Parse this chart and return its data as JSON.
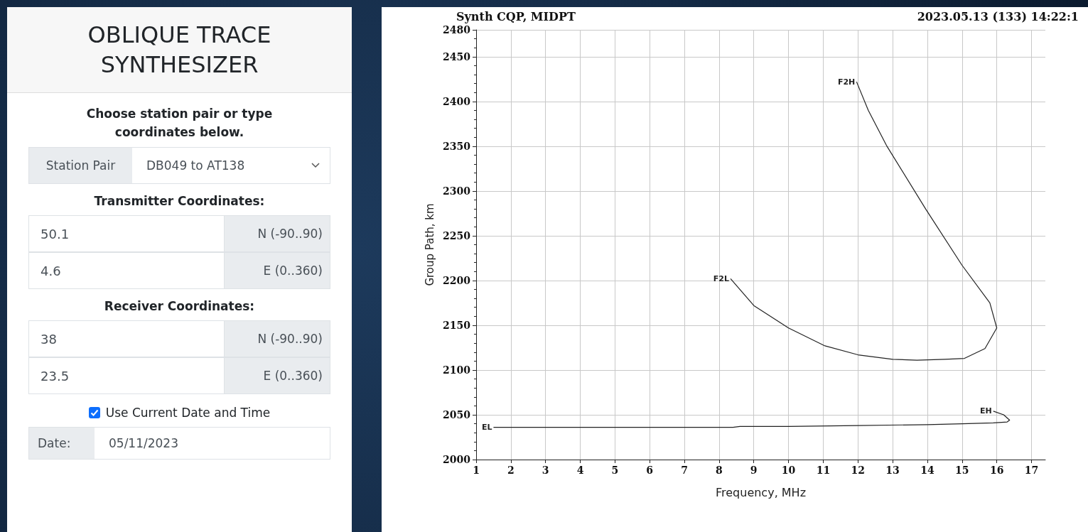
{
  "chart_data": [
    {
      "type": "other",
      "title": "OBLIQUE TRACE SYNTHESIZER",
      "annotations": [
        "Choose station pair or type coordinates below.",
        "Station Pair",
        "DB049 to AT138",
        "Transmitter Coordinates:",
        "50.1",
        "N (-90..90)",
        "4.6",
        "E (0..360)",
        "Receiver Coordinates:",
        "38",
        "N (-90..90)",
        "23.5",
        "E (0..360)",
        "Use Current Date and Time",
        "Date:",
        "05/11/2023"
      ]
    },
    {
      "type": "line",
      "title": "Synth CQP, MIDPT",
      "subtitle": "2023.05.13 (133) 14:22:1",
      "xlabel": "Frequency, MHz",
      "ylabel": "Group Path, km",
      "xlim": [
        1,
        17.4
      ],
      "xticks": [
        1,
        2,
        3,
        4,
        5,
        6,
        7,
        8,
        9,
        10,
        11,
        12,
        13,
        14,
        15,
        16,
        17
      ],
      "ylim": [
        2000,
        2480
      ],
      "yticks": [
        2000,
        2050,
        2100,
        2150,
        2200,
        2250,
        2300,
        2350,
        2400,
        2450,
        2480
      ],
      "grid": true,
      "marker": "none",
      "line_style": "solid",
      "series": [
        {
          "color": "#222222",
          "x": [
            1.5,
            4,
            8.4,
            8.6,
            10,
            12,
            14,
            15,
            15.9,
            16.3,
            16.37,
            16.2,
            15.9
          ],
          "values": [
            2036,
            2036,
            2036,
            2037,
            2037,
            2038,
            2039,
            2040,
            2041,
            2042,
            2044,
            2050,
            2054
          ]
        },
        {
          "color": "#222222",
          "x": [
            8.33,
            9,
            10,
            11.05,
            12,
            13,
            13.7,
            14.5,
            15.07,
            15.66,
            16,
            15.8,
            15,
            13.95,
            12.82,
            12.3,
            11.96
          ],
          "values": [
            2202,
            2172,
            2147,
            2127,
            2117,
            2112,
            2111,
            2112,
            2113,
            2124,
            2147,
            2175,
            2217,
            2280,
            2351,
            2390,
            2422
          ]
        }
      ],
      "annotations": [
        {
          "text": "EL",
          "x": 1.5,
          "y": 2036
        },
        {
          "text": "EH",
          "x": 15.9,
          "y": 2054
        },
        {
          "text": "F2L",
          "x": 8.33,
          "y": 2202
        },
        {
          "text": "F2H",
          "x": 11.96,
          "y": 2422
        }
      ]
    }
  ]
}
